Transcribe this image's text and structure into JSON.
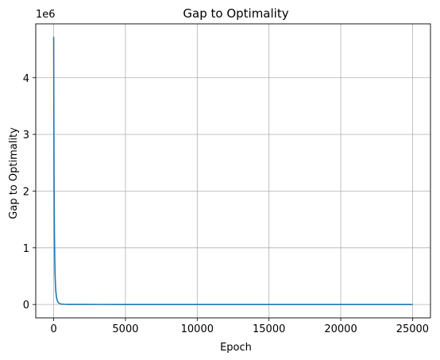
{
  "chart_data": {
    "type": "line",
    "title": "Gap to Optimality",
    "xlabel": "Epoch",
    "ylabel": "Gap to Optimality",
    "y_offset_label": "1e6",
    "xlim": [
      -1250,
      26250
    ],
    "ylim": [
      -0.236,
      4.95
    ],
    "x_ticks": [
      0,
      5000,
      10000,
      15000,
      20000,
      25000
    ],
    "x_tick_labels": [
      "0",
      "5000",
      "10000",
      "15000",
      "20000",
      "25000"
    ],
    "y_ticks": [
      0,
      1,
      2,
      3,
      4
    ],
    "y_tick_labels": [
      "0",
      "1",
      "2",
      "3",
      "4"
    ],
    "grid": true,
    "legend": "none",
    "series": [
      {
        "color": "#1f77b4",
        "x": [
          0,
          10,
          25,
          50,
          75,
          100,
          125,
          150,
          200,
          250,
          300,
          400,
          500,
          700,
          1000,
          2000,
          5000,
          10000,
          15000,
          20000,
          25000
        ],
        "y": [
          4.72,
          3.5,
          2.3,
          1.28,
          0.78,
          0.5,
          0.34,
          0.23,
          0.12,
          0.07,
          0.04,
          0.018,
          0.009,
          0.004,
          0.002,
          0.001,
          0.0,
          0.0,
          0.0,
          0.0,
          0.0
        ]
      }
    ]
  }
}
